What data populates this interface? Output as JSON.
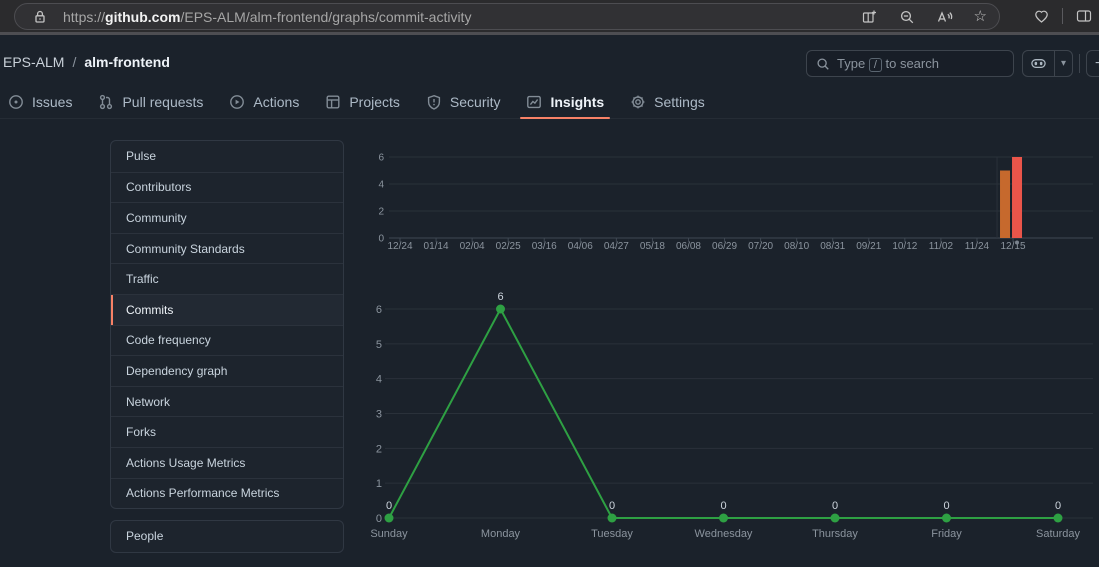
{
  "browser": {
    "url_prefix": "https://",
    "url_domain": "github.com",
    "url_path": "/EPS-ALM/alm-frontend/graphs/commit-activity"
  },
  "icons": {
    "star": "☆",
    "plus": "+",
    "caret_down": "▾"
  },
  "header": {
    "breadcrumb": {
      "owner": "EPS-ALM",
      "separator": "/",
      "repo": "alm-frontend"
    },
    "search": {
      "placeholder_prefix": "Type",
      "key": "/",
      "placeholder_suffix": "to search"
    }
  },
  "nav": {
    "active": "Insights",
    "tabs": [
      {
        "label": "Issues",
        "icon": "issue-opened-icon"
      },
      {
        "label": "Pull requests",
        "icon": "pull-request-icon"
      },
      {
        "label": "Actions",
        "icon": "play-circle-icon"
      },
      {
        "label": "Projects",
        "icon": "table-icon"
      },
      {
        "label": "Security",
        "icon": "shield-icon"
      },
      {
        "label": "Insights",
        "icon": "graph-icon"
      },
      {
        "label": "Settings",
        "icon": "gear-icon"
      }
    ]
  },
  "sidebar": {
    "active": "Commits",
    "items": [
      "Pulse",
      "Contributors",
      "Community",
      "Community Standards",
      "Traffic",
      "Commits",
      "Code frequency",
      "Dependency graph",
      "Network",
      "Forks",
      "Actions Usage Metrics",
      "Actions Performance Metrics"
    ],
    "people_label": "People"
  },
  "chart_data": [
    {
      "type": "bar",
      "name": "weekly-commit-activity",
      "title": "",
      "xlabel": "",
      "ylabel": "",
      "ylim": [
        0,
        6
      ],
      "yticks": [
        0,
        2,
        4,
        6
      ],
      "grid": "horizontal",
      "x_tick_labels": [
        "12/24",
        "01/14",
        "02/04",
        "02/25",
        "03/16",
        "04/06",
        "04/27",
        "05/18",
        "06/08",
        "06/29",
        "07/20",
        "08/10",
        "08/31",
        "09/21",
        "10/12",
        "11/02",
        "11/24",
        "12/15"
      ],
      "bars": [
        {
          "week": "12/08",
          "value": 5,
          "color": "#c6692d"
        },
        {
          "week": "12/15",
          "value": 6,
          "color": "#ea554a"
        }
      ],
      "marker_week": "12/15",
      "colors": {
        "grid": "#2a313a",
        "axis": "#3f4853",
        "tick_text": "#8b949e",
        "marker_dot": "#7a838e"
      }
    },
    {
      "type": "line",
      "name": "commits-by-day-of-week",
      "title": "",
      "xlabel": "",
      "ylabel": "",
      "ylim": [
        0,
        6
      ],
      "yticks": [
        0,
        1,
        2,
        3,
        4,
        5,
        6
      ],
      "grid": "horizontal",
      "categories": [
        "Sunday",
        "Monday",
        "Tuesday",
        "Wednesday",
        "Thursday",
        "Friday",
        "Saturday"
      ],
      "values": [
        0,
        6,
        0,
        0,
        0,
        0,
        0
      ],
      "point_labels": [
        "0",
        "6",
        "0",
        "0",
        "0",
        "0",
        "0"
      ],
      "color": "#2ea043",
      "colors": {
        "grid": "#2a313a",
        "tick_text": "#8b949e",
        "value_text": "#cdd5dd"
      }
    }
  ]
}
